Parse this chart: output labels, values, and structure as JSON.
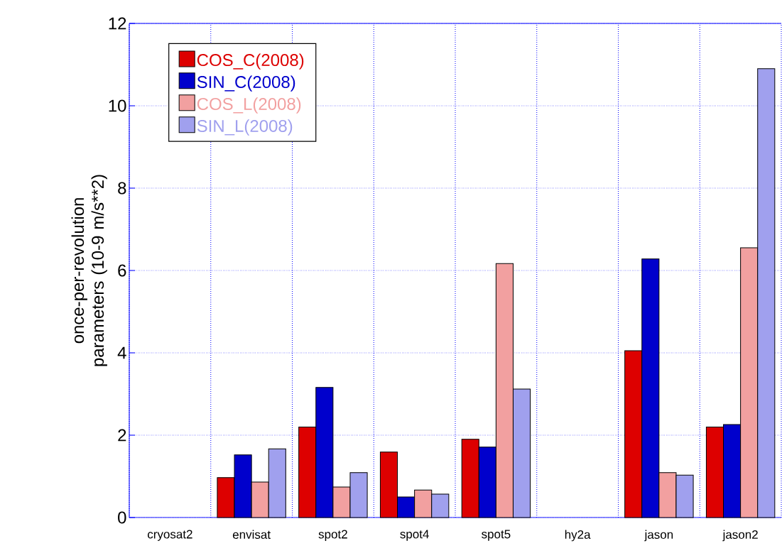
{
  "chart_data": {
    "type": "bar",
    "ylabel": "once-per-revolution parameters (10-9 m/s**2)",
    "categories": [
      "cryosat2",
      "envisat",
      "spot2",
      "spot4",
      "spot5",
      "hy2a",
      "jason",
      "jason2"
    ],
    "series": [
      {
        "name": "COS_C(2008)",
        "color": "#dd0000",
        "values": [
          null,
          0.97,
          2.2,
          1.59,
          1.9,
          null,
          4.05,
          2.2
        ]
      },
      {
        "name": "SIN_C(2008)",
        "color": "#0000cc",
        "values": [
          null,
          1.52,
          3.16,
          0.5,
          1.71,
          null,
          6.28,
          2.26
        ]
      },
      {
        "name": "COS_L(2008)",
        "color": "#f2a0a0",
        "values": [
          null,
          0.86,
          0.74,
          0.67,
          6.17,
          null,
          1.09,
          6.55
        ]
      },
      {
        "name": "SIN_L(2008)",
        "color": "#a0a0ee",
        "values": [
          null,
          1.67,
          1.09,
          0.57,
          3.12,
          null,
          1.03,
          10.9
        ]
      }
    ],
    "ylim": [
      0,
      12
    ],
    "yticks": [
      0,
      2,
      4,
      6,
      8,
      10,
      12
    ],
    "grid": true,
    "legend": "top left"
  }
}
